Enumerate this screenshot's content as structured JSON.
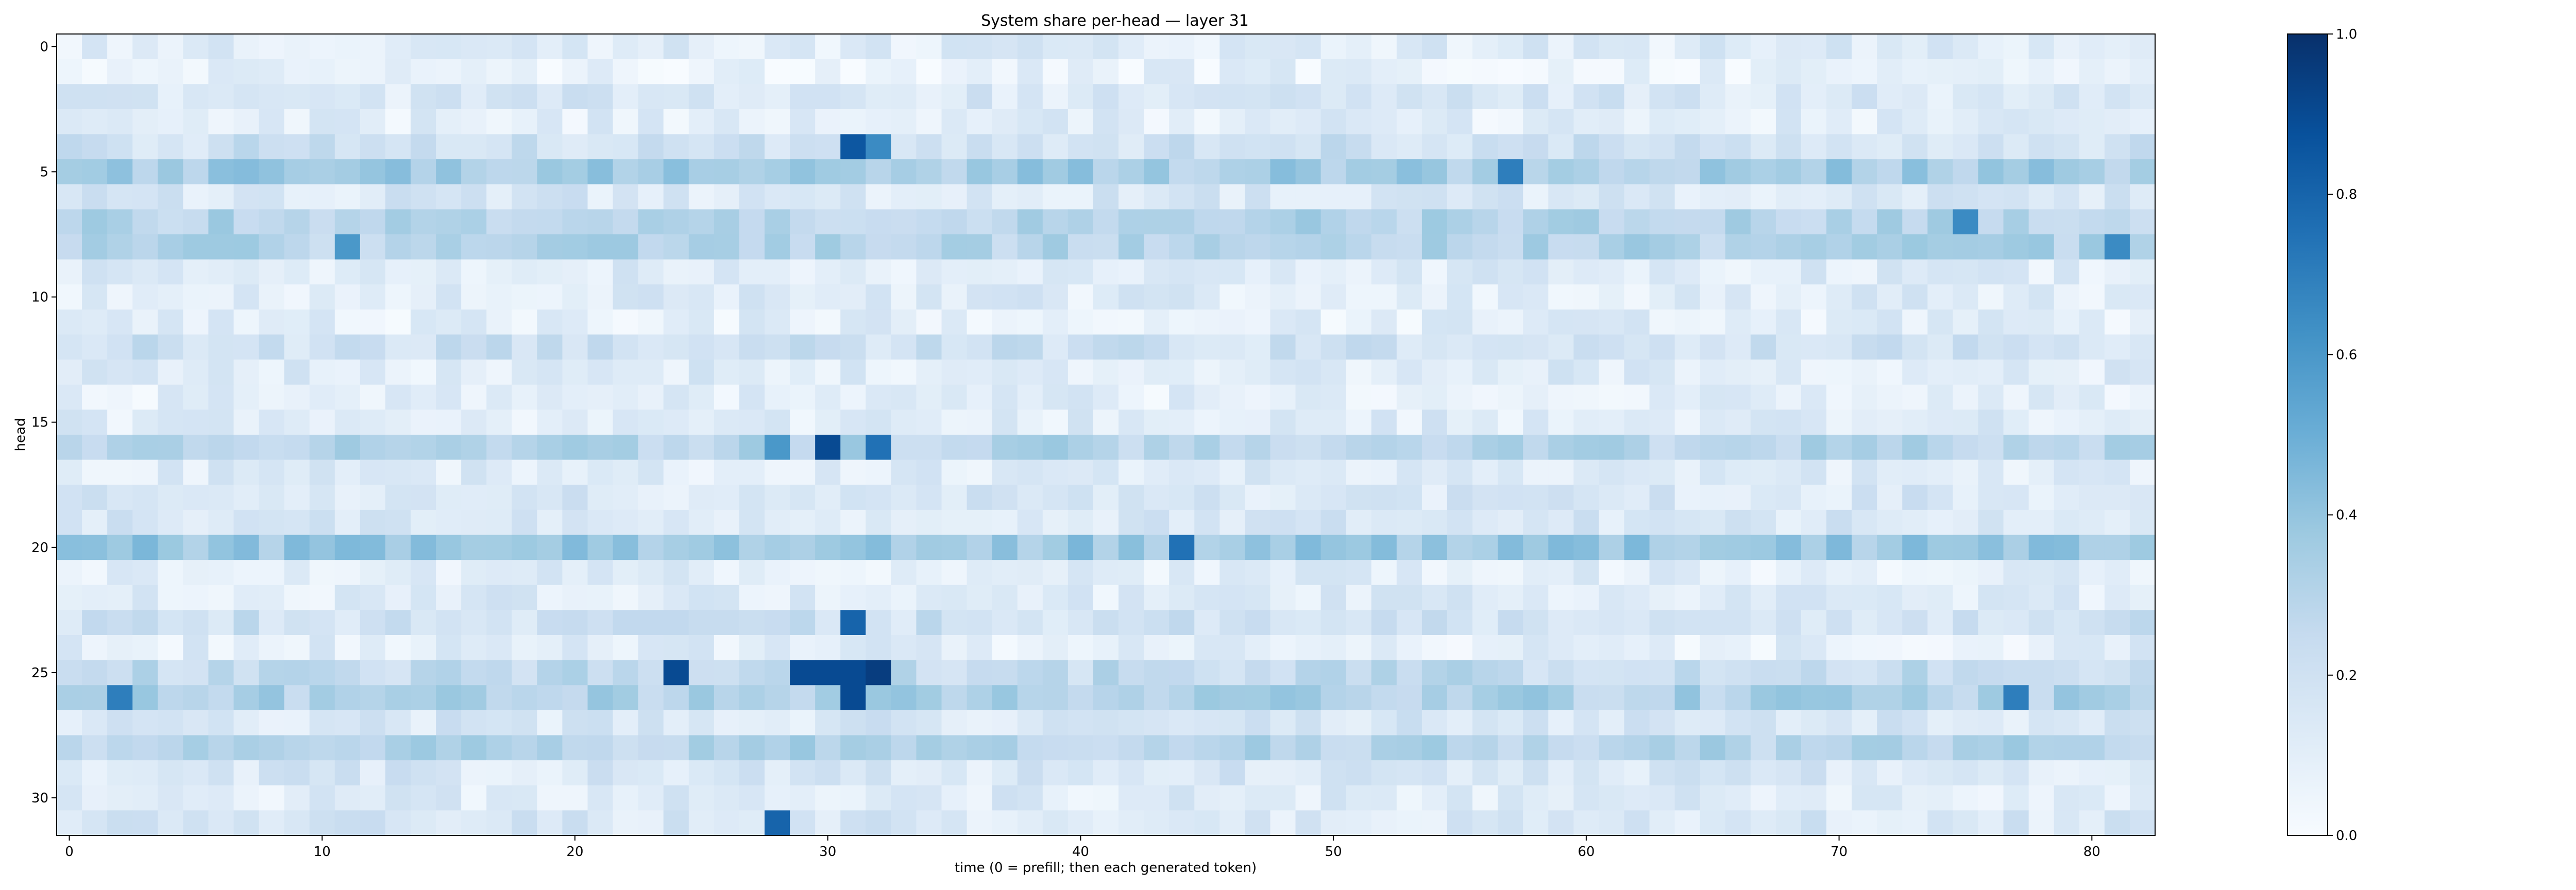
{
  "chart_data": {
    "type": "heatmap",
    "title": "System share per-head — layer 31",
    "xlabel": "time (0 = prefill; then each generated token)",
    "ylabel": "head",
    "x_range": [
      0,
      82
    ],
    "y_range": [
      0,
      31
    ],
    "x_ticks": [
      0,
      10,
      20,
      30,
      40,
      50,
      60,
      70,
      80
    ],
    "y_ticks": [
      0,
      5,
      10,
      15,
      20,
      25,
      30
    ],
    "colormap": "Blues",
    "value_range": [
      0.0,
      1.0
    ],
    "colorbar_ticks": [
      "0.0",
      "0.2",
      "0.4",
      "0.6",
      "0.8",
      "1.0"
    ],
    "colors": {
      "low": "#f7fbff",
      "mid": "#6baed6",
      "high": "#08306b"
    },
    "highlights": [
      {
        "head": 4,
        "time": 31,
        "value": 0.85
      },
      {
        "head": 4,
        "time": 32,
        "value": 0.65
      },
      {
        "head": 5,
        "time": 57,
        "value": 0.7
      },
      {
        "head": 7,
        "time": 75,
        "value": 0.65
      },
      {
        "head": 8,
        "time": 11,
        "value": 0.6
      },
      {
        "head": 8,
        "time": 81,
        "value": 0.65
      },
      {
        "head": 16,
        "time": 30,
        "value": 0.9
      },
      {
        "head": 16,
        "time": 32,
        "value": 0.75
      },
      {
        "head": 16,
        "time": 28,
        "value": 0.6
      },
      {
        "head": 20,
        "time": 44,
        "value": 0.75
      },
      {
        "head": 23,
        "time": 31,
        "value": 0.8
      },
      {
        "head": 25,
        "time": 24,
        "value": 0.9
      },
      {
        "head": 25,
        "time": 29,
        "value": 0.9
      },
      {
        "head": 25,
        "time": 30,
        "value": 0.9
      },
      {
        "head": 25,
        "time": 31,
        "value": 0.9
      },
      {
        "head": 25,
        "time": 32,
        "value": 0.95
      },
      {
        "head": 26,
        "time": 31,
        "value": 0.9
      },
      {
        "head": 26,
        "time": 2,
        "value": 0.7
      },
      {
        "head": 26,
        "time": 77,
        "value": 0.7
      },
      {
        "head": 31,
        "time": 28,
        "value": 0.8
      }
    ],
    "row_levels": [
      0.12,
      0.08,
      0.15,
      0.1,
      0.2,
      0.35,
      0.15,
      0.3,
      0.3,
      0.12,
      0.12,
      0.1,
      0.2,
      0.12,
      0.1,
      0.12,
      0.3,
      0.12,
      0.15,
      0.15,
      0.38,
      0.1,
      0.12,
      0.2,
      0.1,
      0.25,
      0.32,
      0.15,
      0.3,
      0.15,
      0.12,
      0.15
    ]
  }
}
